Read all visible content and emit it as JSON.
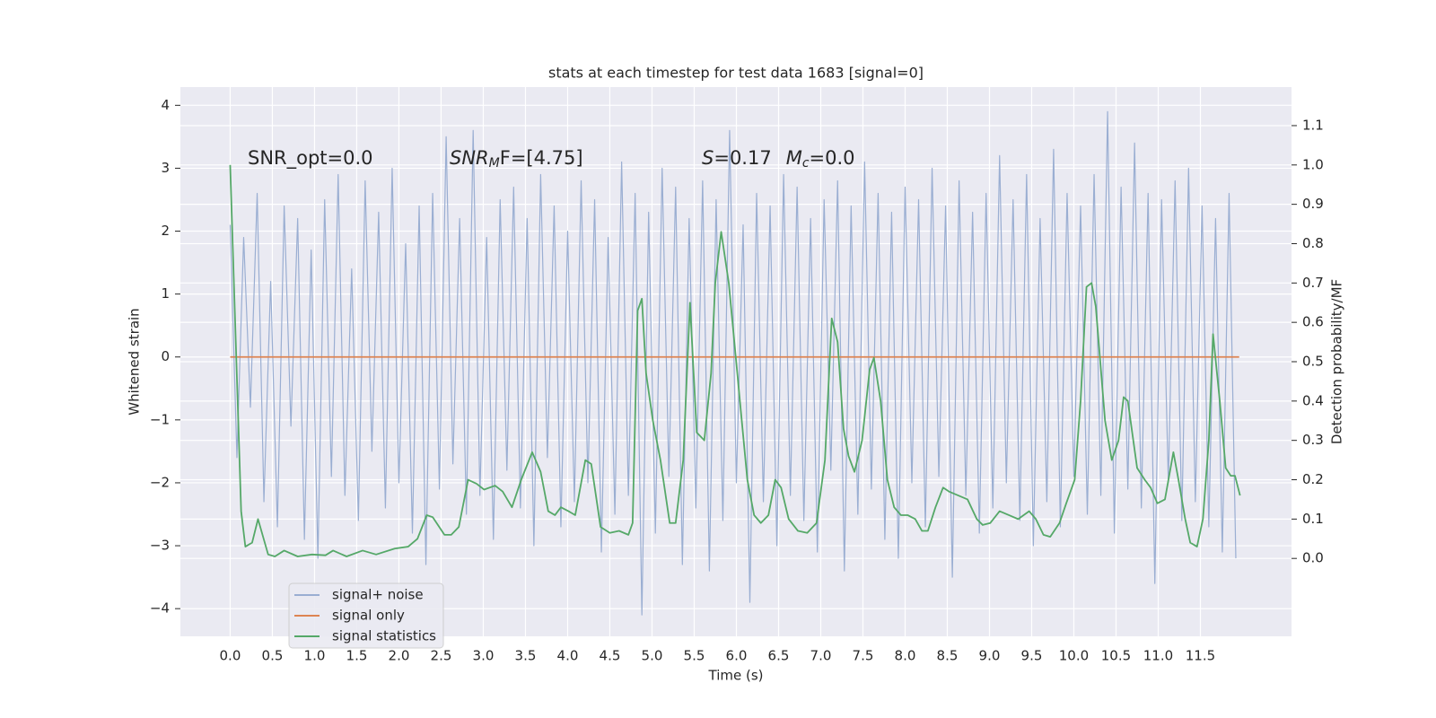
{
  "chart_data": {
    "type": "line",
    "title": "stats at each timestep for test data 1683 [signal=0]",
    "xlabel": "Time (s)",
    "ylabel": "Whitened strain",
    "y2label": "Detection probability/MF",
    "annotations": [
      [
        "SNR_opt=0.0"
      ],
      [
        "SNR",
        "M",
        "F=[4.75]"
      ],
      [
        "S",
        "=0.17",
        "M",
        "c",
        "=0.0"
      ]
    ],
    "grid": true,
    "legend": "lower left",
    "xlim": [
      -0.59,
      12.58
    ],
    "ylim": [
      -4.44,
      4.29
    ],
    "y2lim": [
      -0.198,
      1.198
    ],
    "xticks": [
      {
        "value": 0,
        "label": "0.0"
      },
      0.5,
      {
        "value": 1,
        "label": "1.0"
      },
      1.5,
      {
        "value": 2,
        "label": "2.0"
      },
      2.5,
      {
        "value": 3,
        "label": "3.0"
      },
      3.5,
      {
        "value": 4,
        "label": "4.0"
      },
      4.5,
      {
        "value": 5,
        "label": "5.0"
      },
      5.5,
      {
        "value": 6,
        "label": "6.0"
      },
      6.5,
      {
        "value": 7,
        "label": "7.0"
      },
      7.5,
      {
        "value": 8,
        "label": "8.0"
      },
      8.5,
      {
        "value": 9,
        "label": "9.0"
      },
      9.5,
      {
        "value": 10,
        "label": "10.0"
      },
      10.5,
      {
        "value": 11,
        "label": "11.0"
      },
      11.5
    ],
    "yticks": [
      {
        "value": -4,
        "label": "−4"
      },
      {
        "value": -3,
        "label": "−3"
      },
      {
        "value": -2,
        "label": "−2"
      },
      {
        "value": -1,
        "label": "−1"
      },
      0,
      1,
      2,
      3,
      4
    ],
    "y2ticks": [
      {
        "value": 0,
        "label": "0.0"
      },
      0.1,
      0.2,
      0.3,
      0.4,
      0.5,
      0.6,
      0.7,
      0.8,
      0.9,
      {
        "value": 1,
        "label": "1.0"
      },
      1.1
    ],
    "series": [
      {
        "name": "signal+ noise",
        "color": "#9aaed2",
        "x": [
          0,
          0.08,
          0.16,
          0.24,
          0.32,
          0.4,
          0.48,
          0.56,
          0.64,
          0.72,
          0.8,
          0.88,
          0.96,
          1.04,
          1.12,
          1.2,
          1.28,
          1.36,
          1.44,
          1.52,
          1.6,
          1.68,
          1.76,
          1.84,
          1.92,
          2,
          2.08,
          2.16,
          2.24,
          2.32,
          2.4,
          2.48,
          2.56,
          2.64,
          2.72,
          2.8,
          2.88,
          2.96,
          3.04,
          3.12,
          3.2,
          3.28,
          3.36,
          3.44,
          3.52,
          3.6,
          3.68,
          3.76,
          3.84,
          3.92,
          4,
          4.08,
          4.16,
          4.24,
          4.32,
          4.4,
          4.48,
          4.56,
          4.64,
          4.72,
          4.8,
          4.88,
          4.96,
          5.04,
          5.12,
          5.2,
          5.28,
          5.36,
          5.44,
          5.52,
          5.6,
          5.68,
          5.76,
          5.84,
          5.92,
          6,
          6.08,
          6.16,
          6.24,
          6.32,
          6.4,
          6.48,
          6.56,
          6.64,
          6.72,
          6.8,
          6.88,
          6.96,
          7.04,
          7.12,
          7.2,
          7.28,
          7.36,
          7.44,
          7.52,
          7.6,
          7.68,
          7.76,
          7.84,
          7.92,
          8,
          8.08,
          8.16,
          8.24,
          8.32,
          8.4,
          8.48,
          8.56,
          8.64,
          8.72,
          8.8,
          8.88,
          8.96,
          9.04,
          9.12,
          9.2,
          9.28,
          9.36,
          9.44,
          9.52,
          9.6,
          9.68,
          9.76,
          9.84,
          9.92,
          10,
          10.08,
          10.16,
          10.24,
          10.32,
          10.4,
          10.48,
          10.56,
          10.64,
          10.72,
          10.8,
          10.88,
          10.96,
          11.04,
          11.12,
          11.2,
          11.28,
          11.36,
          11.44,
          11.52,
          11.6,
          11.68,
          11.76,
          11.84,
          11.92
        ],
        "values": [
          2.1,
          -1.6,
          1.9,
          -0.8,
          2.6,
          -2.3,
          1.2,
          -2.7,
          2.4,
          -1.1,
          2.2,
          -2.9,
          1.7,
          -3.2,
          2.5,
          -1.9,
          2.9,
          -2.2,
          1.4,
          -2.6,
          2.8,
          -1.5,
          2.3,
          -2.4,
          3.0,
          -2.0,
          1.8,
          -2.8,
          2.4,
          -3.3,
          2.6,
          -2.1,
          3.5,
          -1.7,
          2.2,
          -2.5,
          3.6,
          -2.2,
          1.9,
          -2.9,
          2.5,
          -1.8,
          2.7,
          -2.4,
          2.2,
          -3.0,
          2.9,
          -1.6,
          2.4,
          -2.7,
          2.0,
          -2.3,
          2.8,
          -2.0,
          2.5,
          -3.1,
          1.9,
          -2.5,
          3.1,
          -2.2,
          2.6,
          -4.1,
          2.3,
          -2.8,
          3.0,
          -1.9,
          2.7,
          -3.3,
          2.2,
          -2.4,
          2.8,
          -3.4,
          2.5,
          -2.6,
          3.6,
          -2.0,
          2.1,
          -3.9,
          2.6,
          -2.3,
          2.4,
          -3.0,
          2.9,
          -2.2,
          2.7,
          -2.6,
          2.2,
          -3.1,
          2.5,
          -1.8,
          2.8,
          -3.4,
          2.4,
          -2.5,
          3.1,
          -2.1,
          2.6,
          -2.9,
          2.3,
          -3.2,
          2.7,
          -2.0,
          2.5,
          -2.7,
          3.0,
          -1.9,
          2.4,
          -3.5,
          2.8,
          -2.2,
          2.3,
          -2.8,
          2.6,
          -2.4,
          3.2,
          -2.0,
          2.5,
          -2.6,
          2.9,
          -3.0,
          2.2,
          -2.3,
          3.3,
          -2.7,
          2.6,
          -1.9,
          2.4,
          -2.5,
          2.9,
          -2.2,
          3.9,
          -2.8,
          2.7,
          -2.1,
          3.4,
          -2.4,
          2.6,
          -3.6,
          2.5,
          -2.0,
          2.8,
          -2.6,
          3.0,
          -2.3,
          2.4,
          -2.7,
          2.2,
          -3.1,
          2.6,
          -3.2
        ]
      },
      {
        "name": "signal only",
        "color": "#dd8452",
        "x": [
          0,
          11.96
        ],
        "values": [
          0,
          0
        ]
      },
      {
        "name": "signal statistics",
        "color": "#55a868",
        "axis": "y2",
        "x": [
          0,
          0.13,
          0.18,
          0.26,
          0.33,
          0.45,
          0.53,
          0.64,
          0.8,
          0.97,
          1.13,
          1.22,
          1.38,
          1.57,
          1.73,
          1.95,
          2.11,
          2.22,
          2.33,
          2.4,
          2.54,
          2.62,
          2.71,
          2.82,
          2.92,
          3.01,
          3.14,
          3.23,
          3.34,
          3.45,
          3.58,
          3.68,
          3.77,
          3.85,
          3.92,
          4.01,
          4.09,
          4.21,
          4.28,
          4.39,
          4.5,
          4.61,
          4.72,
          4.77,
          4.83,
          4.88,
          4.93,
          5.01,
          5.1,
          5.21,
          5.28,
          5.37,
          5.45,
          5.53,
          5.62,
          5.7,
          5.75,
          5.82,
          5.91,
          6.02,
          6.13,
          6.21,
          6.29,
          6.38,
          6.46,
          6.53,
          6.62,
          6.73,
          6.84,
          6.95,
          7.05,
          7.13,
          7.2,
          7.27,
          7.33,
          7.4,
          7.49,
          7.58,
          7.63,
          7.71,
          7.79,
          7.87,
          7.95,
          8.03,
          8.12,
          8.2,
          8.27,
          8.36,
          8.45,
          8.52,
          8.63,
          8.74,
          8.85,
          8.92,
          9.01,
          9.12,
          9.23,
          9.34,
          9.47,
          9.55,
          9.64,
          9.72,
          9.83,
          9.91,
          10.01,
          10.08,
          10.15,
          10.21,
          10.26,
          10.37,
          10.45,
          10.53,
          10.59,
          10.64,
          10.75,
          10.84,
          10.91,
          10.99,
          11.08,
          11.18,
          11.24,
          11.32,
          11.38,
          11.46,
          11.53,
          11.6,
          11.65,
          11.73,
          11.8,
          11.86,
          11.91,
          11.97
        ],
        "values": [
          1.0,
          0.12,
          0.03,
          0.04,
          0.1,
          0.01,
          0.005,
          0.02,
          0.005,
          0.01,
          0.008,
          0.02,
          0.005,
          0.02,
          0.01,
          0.025,
          0.03,
          0.05,
          0.11,
          0.105,
          0.06,
          0.06,
          0.08,
          0.2,
          0.19,
          0.175,
          0.185,
          0.17,
          0.13,
          0.2,
          0.27,
          0.22,
          0.12,
          0.11,
          0.13,
          0.12,
          0.11,
          0.25,
          0.24,
          0.08,
          0.065,
          0.07,
          0.06,
          0.09,
          0.63,
          0.66,
          0.47,
          0.35,
          0.25,
          0.09,
          0.09,
          0.25,
          0.65,
          0.32,
          0.3,
          0.47,
          0.7,
          0.83,
          0.7,
          0.45,
          0.2,
          0.11,
          0.09,
          0.11,
          0.2,
          0.18,
          0.1,
          0.07,
          0.065,
          0.09,
          0.25,
          0.61,
          0.55,
          0.33,
          0.26,
          0.22,
          0.3,
          0.48,
          0.51,
          0.4,
          0.2,
          0.13,
          0.11,
          0.11,
          0.1,
          0.07,
          0.07,
          0.13,
          0.18,
          0.17,
          0.16,
          0.15,
          0.1,
          0.085,
          0.09,
          0.12,
          0.11,
          0.1,
          0.12,
          0.1,
          0.06,
          0.055,
          0.09,
          0.14,
          0.2,
          0.4,
          0.69,
          0.7,
          0.64,
          0.35,
          0.25,
          0.3,
          0.41,
          0.4,
          0.23,
          0.2,
          0.18,
          0.14,
          0.15,
          0.27,
          0.2,
          0.1,
          0.04,
          0.03,
          0.1,
          0.3,
          0.57,
          0.4,
          0.23,
          0.21,
          0.21,
          0.16
        ]
      }
    ]
  }
}
